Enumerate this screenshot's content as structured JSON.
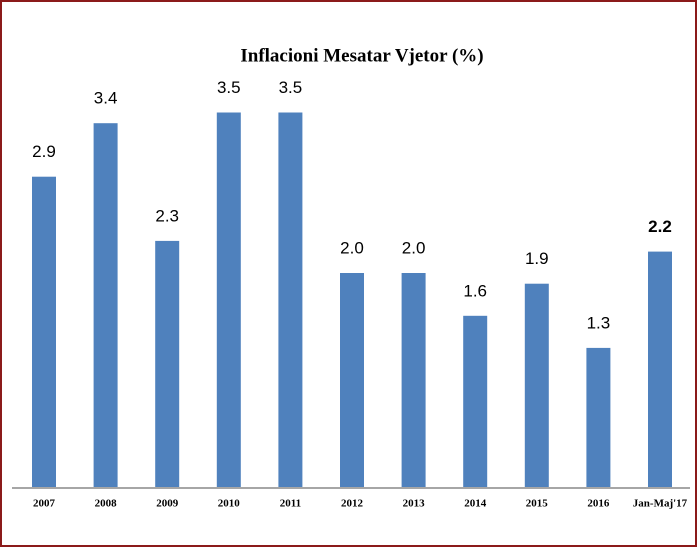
{
  "chart_data": {
    "type": "bar",
    "title": "Inflacioni Mesatar Vjetor (%)",
    "categories": [
      "2007",
      "2008",
      "2009",
      "2010",
      "2011",
      "2012",
      "2013",
      "2014",
      "2015",
      "2016",
      "Jan-Maj'17"
    ],
    "values": [
      2.9,
      3.4,
      2.3,
      3.5,
      3.5,
      2.0,
      2.0,
      1.6,
      1.9,
      1.3,
      2.2
    ],
    "value_labels": [
      "2.9",
      "3.4",
      "2.3",
      "3.5",
      "3.5",
      "2.0",
      "2.0",
      "1.6",
      "1.9",
      "1.3",
      "2.2"
    ],
    "color": "#4f81bd"
  }
}
